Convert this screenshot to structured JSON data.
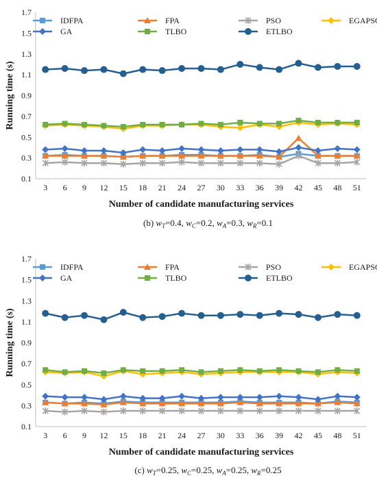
{
  "chart_data": [
    {
      "type": "line",
      "caption": "(b) wT=0.4, wC=0.2, wA=0.3, wR=0.1",
      "caption_parts": [
        "(b) ",
        "w",
        "T",
        "=0.4, ",
        "w",
        "C",
        "=0.2, ",
        "w",
        "A",
        "=0.3, ",
        "w",
        "R",
        "=0.1"
      ],
      "xlabel": "Number of candidate manufacturing services",
      "ylabel": "Running time (s)",
      "x": [
        3,
        6,
        9,
        12,
        15,
        18,
        21,
        24,
        27,
        30,
        33,
        36,
        39,
        42,
        45,
        48,
        51
      ],
      "yticks": [
        "0.1",
        "0.3",
        "0.5",
        "0.7",
        "0.9",
        "1.1",
        "1.3",
        "1.5",
        "1.7"
      ],
      "ylim": [
        0.1,
        1.7
      ],
      "grid": false,
      "legend_position": "top",
      "series": [
        {
          "name": "IDFPA",
          "color": "#5b9bd5",
          "marker": "square",
          "values": [
            0.32,
            0.33,
            0.32,
            0.32,
            0.31,
            0.32,
            0.32,
            0.33,
            0.33,
            0.32,
            0.32,
            0.33,
            0.31,
            0.34,
            0.32,
            0.32,
            0.32
          ]
        },
        {
          "name": "FPA",
          "color": "#ed7d31",
          "marker": "triangle",
          "values": [
            0.32,
            0.32,
            0.32,
            0.32,
            0.31,
            0.32,
            0.32,
            0.32,
            0.32,
            0.32,
            0.32,
            0.32,
            0.31,
            0.49,
            0.32,
            0.32,
            0.32
          ]
        },
        {
          "name": "PSO",
          "color": "#a5a5a5",
          "marker": "star",
          "values": [
            0.25,
            0.26,
            0.25,
            0.25,
            0.24,
            0.25,
            0.25,
            0.26,
            0.25,
            0.25,
            0.25,
            0.25,
            0.24,
            0.32,
            0.25,
            0.25,
            0.26
          ]
        },
        {
          "name": "EGAPSO",
          "color": "#ffc000",
          "marker": "diamond",
          "values": [
            0.61,
            0.62,
            0.61,
            0.6,
            0.58,
            0.61,
            0.61,
            0.62,
            0.62,
            0.6,
            0.59,
            0.62,
            0.6,
            0.64,
            0.62,
            0.63,
            0.62
          ]
        },
        {
          "name": "GA",
          "color": "#4472c4",
          "marker": "diamond",
          "values": [
            0.38,
            0.39,
            0.37,
            0.37,
            0.35,
            0.38,
            0.37,
            0.39,
            0.38,
            0.37,
            0.38,
            0.38,
            0.36,
            0.4,
            0.37,
            0.39,
            0.38
          ]
        },
        {
          "name": "TLBO",
          "color": "#70ad47",
          "marker": "square",
          "values": [
            0.62,
            0.63,
            0.62,
            0.61,
            0.6,
            0.62,
            0.62,
            0.62,
            0.63,
            0.62,
            0.64,
            0.63,
            0.63,
            0.66,
            0.64,
            0.64,
            0.64
          ]
        },
        {
          "name": "ETLBO",
          "color": "#255e91",
          "marker": "circle",
          "values": [
            1.15,
            1.16,
            1.14,
            1.15,
            1.11,
            1.15,
            1.14,
            1.16,
            1.16,
            1.15,
            1.2,
            1.17,
            1.15,
            1.21,
            1.17,
            1.18,
            1.18
          ]
        }
      ]
    },
    {
      "type": "line",
      "caption": "(c) wT=0.25, wC=0.25, wA=0.25, wR=0.25",
      "caption_parts": [
        "(c) ",
        "w",
        "T",
        "=0.25, ",
        "w",
        "C",
        "=0.25, ",
        "w",
        "A",
        "=0.25, ",
        "w",
        "R",
        "=0.25"
      ],
      "xlabel": "Number of candidate manufacturing services",
      "ylabel": "Running time (s)",
      "x": [
        3,
        6,
        9,
        12,
        15,
        18,
        21,
        24,
        27,
        30,
        33,
        36,
        39,
        42,
        45,
        48,
        51
      ],
      "yticks": [
        "0.1",
        "0.3",
        "0.5",
        "0.7",
        "0.9",
        "1.1",
        "1.3",
        "1.5",
        "1.7"
      ],
      "ylim": [
        0.1,
        1.7
      ],
      "grid": false,
      "legend_position": "top",
      "series": [
        {
          "name": "IDFPA",
          "color": "#5b9bd5",
          "marker": "square",
          "values": [
            0.33,
            0.32,
            0.33,
            0.32,
            0.34,
            0.33,
            0.33,
            0.33,
            0.33,
            0.33,
            0.34,
            0.33,
            0.33,
            0.33,
            0.32,
            0.34,
            0.33
          ]
        },
        {
          "name": "FPA",
          "color": "#ed7d31",
          "marker": "triangle",
          "values": [
            0.33,
            0.32,
            0.32,
            0.31,
            0.33,
            0.32,
            0.32,
            0.32,
            0.32,
            0.32,
            0.33,
            0.32,
            0.32,
            0.32,
            0.32,
            0.33,
            0.32
          ]
        },
        {
          "name": "PSO",
          "color": "#a5a5a5",
          "marker": "star",
          "values": [
            0.25,
            0.24,
            0.25,
            0.24,
            0.25,
            0.25,
            0.25,
            0.25,
            0.25,
            0.25,
            0.25,
            0.25,
            0.25,
            0.25,
            0.25,
            0.25,
            0.25
          ]
        },
        {
          "name": "EGAPSO",
          "color": "#ffc000",
          "marker": "diamond",
          "values": [
            0.62,
            0.61,
            0.62,
            0.58,
            0.63,
            0.6,
            0.61,
            0.62,
            0.6,
            0.61,
            0.62,
            0.62,
            0.62,
            0.62,
            0.6,
            0.62,
            0.61
          ]
        },
        {
          "name": "GA",
          "color": "#4472c4",
          "marker": "diamond",
          "values": [
            0.39,
            0.38,
            0.38,
            0.36,
            0.39,
            0.37,
            0.37,
            0.39,
            0.37,
            0.38,
            0.38,
            0.38,
            0.39,
            0.38,
            0.36,
            0.39,
            0.38
          ]
        },
        {
          "name": "TLBO",
          "color": "#70ad47",
          "marker": "square",
          "values": [
            0.64,
            0.62,
            0.63,
            0.61,
            0.64,
            0.63,
            0.63,
            0.64,
            0.62,
            0.63,
            0.64,
            0.63,
            0.64,
            0.63,
            0.62,
            0.64,
            0.63
          ]
        },
        {
          "name": "ETLBO",
          "color": "#255e91",
          "marker": "circle",
          "values": [
            1.18,
            1.14,
            1.16,
            1.12,
            1.19,
            1.14,
            1.15,
            1.18,
            1.16,
            1.16,
            1.17,
            1.16,
            1.18,
            1.17,
            1.14,
            1.17,
            1.16
          ]
        }
      ]
    }
  ]
}
